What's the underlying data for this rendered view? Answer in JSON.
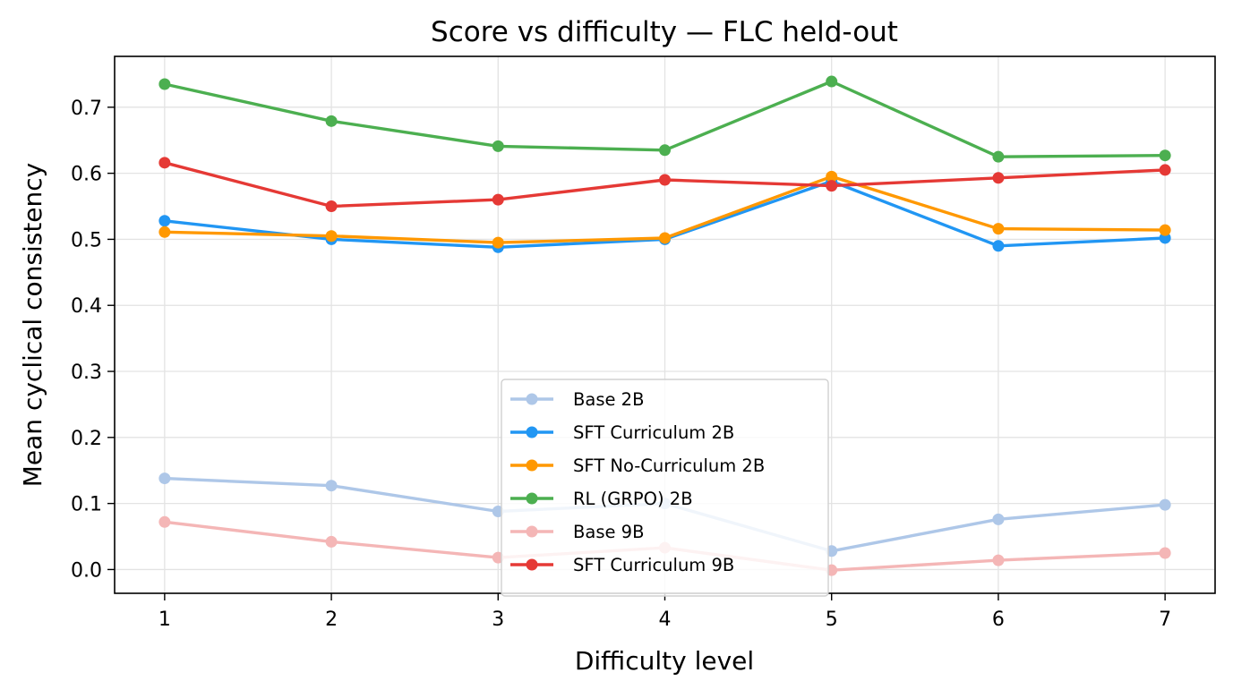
{
  "chart_data": {
    "type": "line",
    "title": "Score vs difficulty — FLC held-out",
    "xlabel": "Difficulty level",
    "ylabel": "Mean cyclical consistency",
    "x": [
      1,
      2,
      3,
      4,
      5,
      6,
      7
    ],
    "x_ticks": [
      "1",
      "2",
      "3",
      "4",
      "5",
      "6",
      "7"
    ],
    "xlim": [
      0.7,
      7.3
    ],
    "y_ticks": [
      "0.0",
      "0.1",
      "0.2",
      "0.3",
      "0.4",
      "0.5",
      "0.6",
      "0.7"
    ],
    "ylim": [
      -0.036,
      0.777
    ],
    "grid": true,
    "legend_placement": "lower-center",
    "series": [
      {
        "name": "Base 2B",
        "color": "#aec7e8",
        "values": [
          0.138,
          0.127,
          0.088,
          0.1,
          0.028,
          0.076,
          0.098
        ]
      },
      {
        "name": "SFT Curriculum 2B",
        "color": "#2196f3",
        "values": [
          0.528,
          0.5,
          0.488,
          0.5,
          0.588,
          0.49,
          0.502
        ]
      },
      {
        "name": "SFT No-Curriculum 2B",
        "color": "#ff9800",
        "values": [
          0.511,
          0.505,
          0.495,
          0.502,
          0.595,
          0.516,
          0.514
        ]
      },
      {
        "name": "RL (GRPO) 2B",
        "color": "#4caf50",
        "values": [
          0.735,
          0.679,
          0.641,
          0.635,
          0.739,
          0.625,
          0.627
        ]
      },
      {
        "name": "Base 9B",
        "color": "#f4b6b6",
        "values": [
          0.072,
          0.042,
          0.018,
          0.033,
          -0.001,
          0.014,
          0.025
        ]
      },
      {
        "name": "SFT Curriculum 9B",
        "color": "#e53935",
        "values": [
          0.616,
          0.55,
          0.56,
          0.59,
          0.581,
          0.593,
          0.605
        ]
      }
    ]
  }
}
